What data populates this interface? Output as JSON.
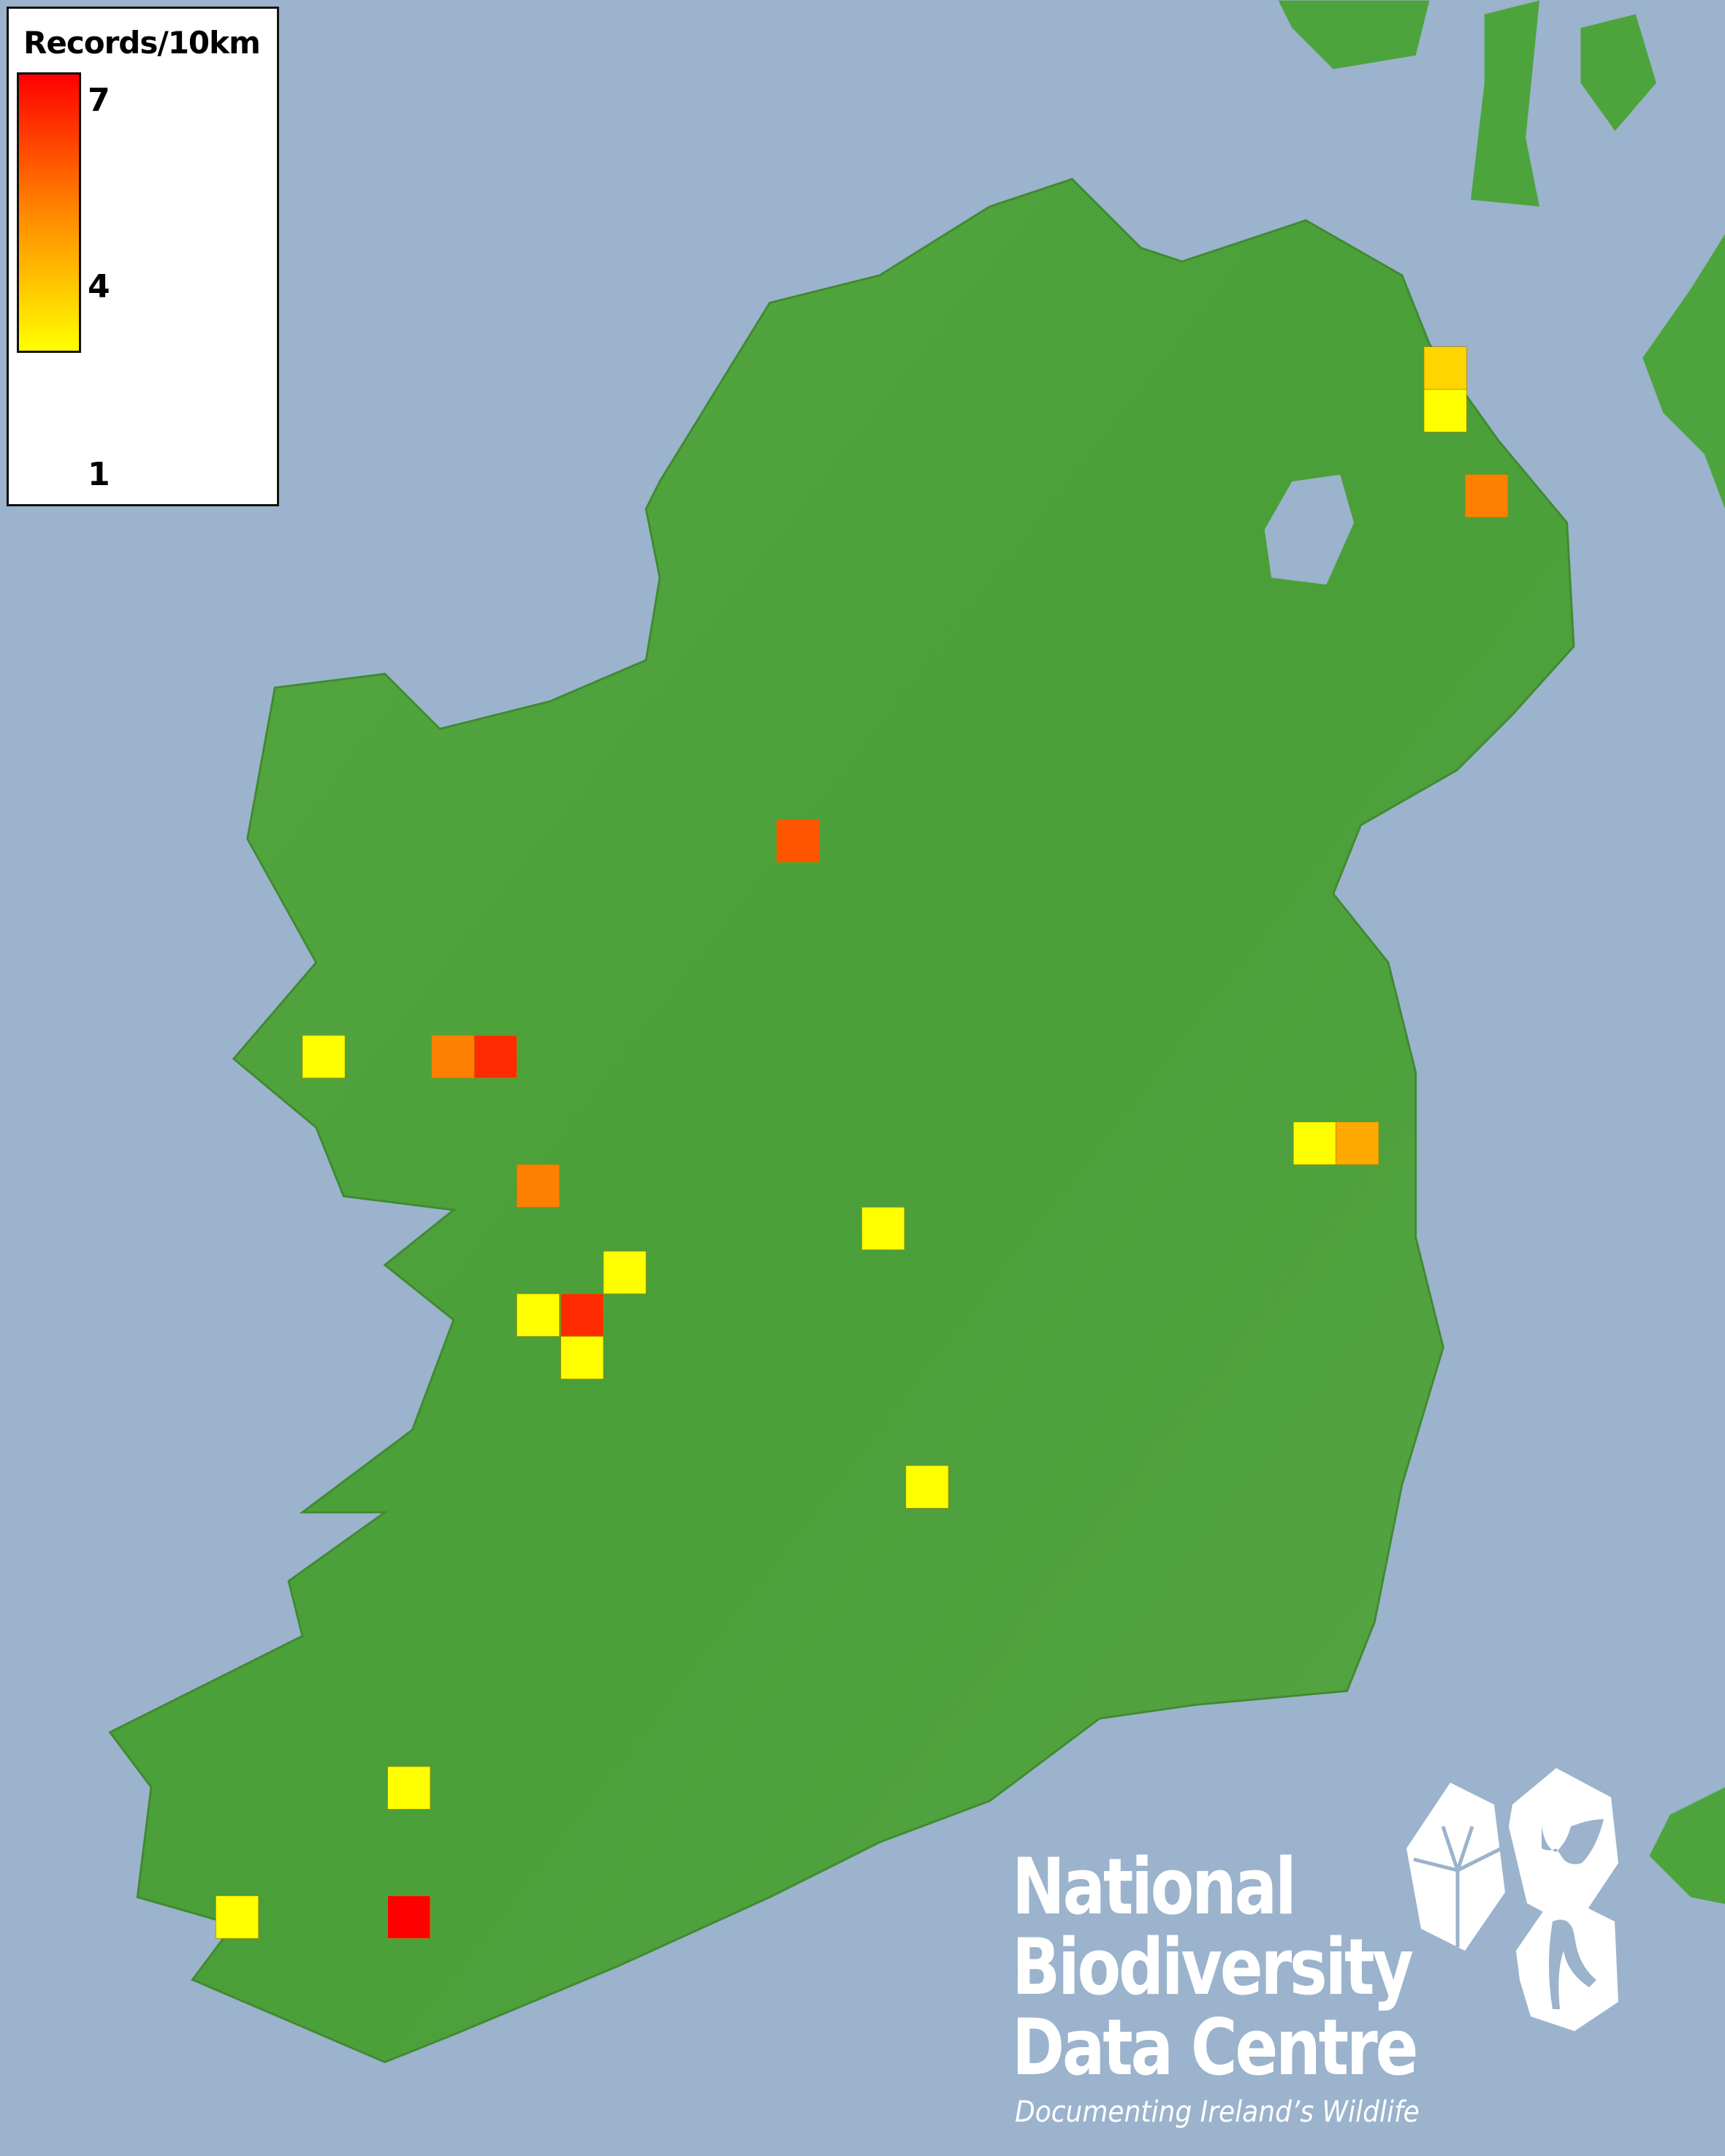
{
  "legend": {
    "title": "Records/10km",
    "scale_max": "7",
    "scale_mid": "4",
    "scale_min": "1",
    "colors": {
      "min": "#ffff00",
      "mid": "#ff8800",
      "max": "#ff0000"
    }
  },
  "map": {
    "sea_color": "#9bb3cc",
    "land_color": "#4ea43c",
    "squares": [
      {
        "value": 2
      },
      {
        "value": 1
      },
      {
        "value": 4
      },
      {
        "value": 5
      },
      {
        "value": 1
      },
      {
        "value": 4
      },
      {
        "value": 6
      },
      {
        "value": 4
      },
      {
        "value": 1
      },
      {
        "value": 3
      },
      {
        "value": 1
      },
      {
        "value": 1
      },
      {
        "value": 1
      },
      {
        "value": 6
      },
      {
        "value": 1
      },
      {
        "value": 1
      },
      {
        "value": 1
      },
      {
        "value": 1
      },
      {
        "value": 7
      }
    ]
  },
  "logo": {
    "line1": "National",
    "line2": "Biodiversity",
    "line3": "Data Centre",
    "tagline": "Documenting Ireland’s Wildlife",
    "icons": [
      "tree-icon",
      "butterfly-icon",
      "seahorse-icon"
    ]
  }
}
